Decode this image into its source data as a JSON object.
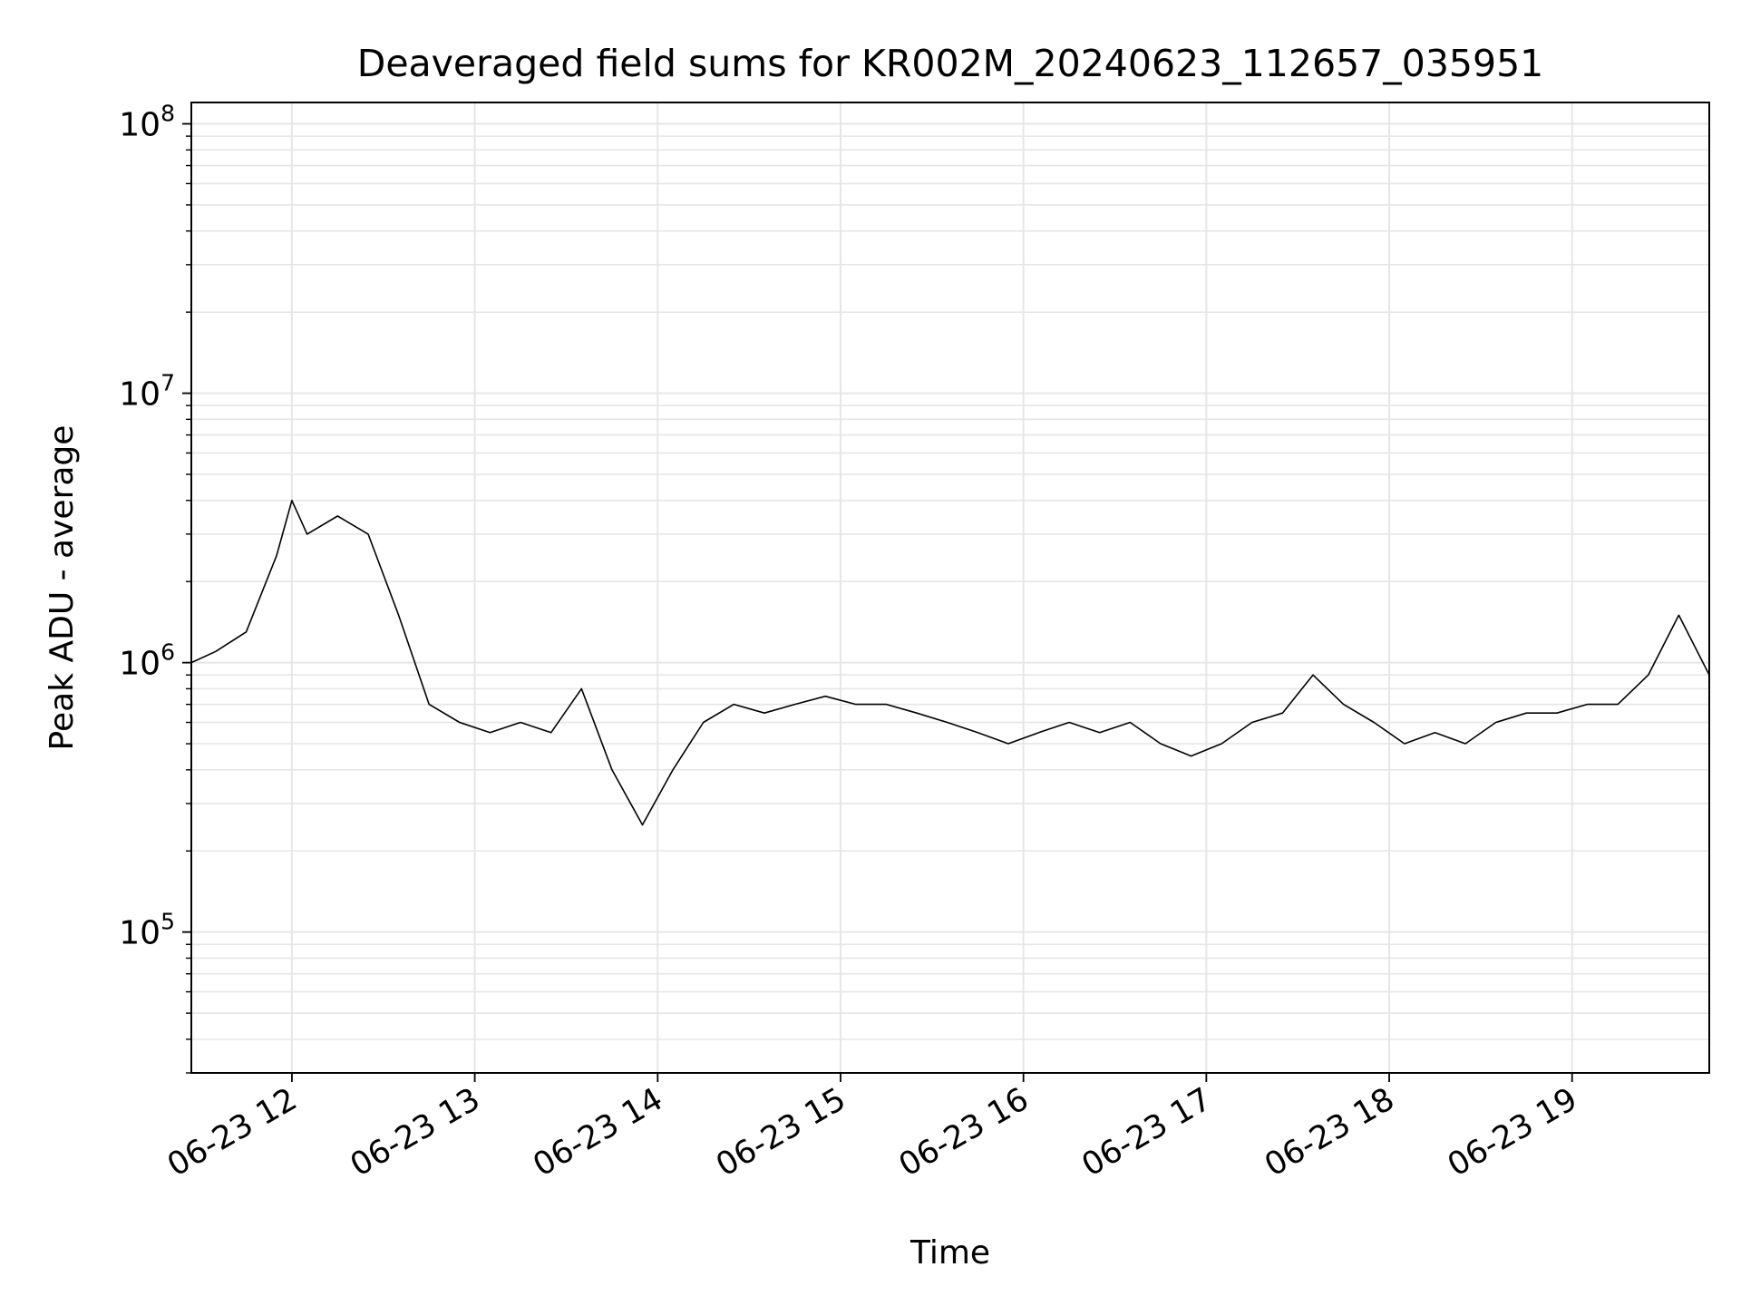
{
  "chart_data": {
    "type": "line",
    "title": "Deaveraged field sums for KR002M_20240623_112657_035951",
    "xlabel": "Time",
    "ylabel": "Peak ADU - average",
    "yscale": "log",
    "ylim": [
      30000,
      120000000
    ],
    "xlim": [
      "2024-06-23 11:27",
      "2024-06-23 19:45"
    ],
    "grid": true,
    "line_color": "#000000",
    "grid_color": "#e6e6e6",
    "x_ticks": [
      {
        "t": "2024-06-23 12:00",
        "label": "06-23 12"
      },
      {
        "t": "2024-06-23 13:00",
        "label": "06-23 13"
      },
      {
        "t": "2024-06-23 14:00",
        "label": "06-23 14"
      },
      {
        "t": "2024-06-23 15:00",
        "label": "06-23 15"
      },
      {
        "t": "2024-06-23 16:00",
        "label": "06-23 16"
      },
      {
        "t": "2024-06-23 17:00",
        "label": "06-23 17"
      },
      {
        "t": "2024-06-23 18:00",
        "label": "06-23 18"
      },
      {
        "t": "2024-06-23 19:00",
        "label": "06-23 19"
      }
    ],
    "y_ticks": [
      {
        "value": 100000,
        "mantissa": "10",
        "exponent": "5"
      },
      {
        "value": 1000000,
        "mantissa": "10",
        "exponent": "6"
      },
      {
        "value": 10000000,
        "mantissa": "10",
        "exponent": "7"
      },
      {
        "value": 100000000,
        "mantissa": "10",
        "exponent": "8"
      }
    ],
    "series": [
      {
        "x": [
          "2024-06-23 11:27",
          "2024-06-23 11:35",
          "2024-06-23 11:45",
          "2024-06-23 11:55",
          "2024-06-23 12:00",
          "2024-06-23 12:05",
          "2024-06-23 12:15",
          "2024-06-23 12:25",
          "2024-06-23 12:35",
          "2024-06-23 12:45",
          "2024-06-23 12:55",
          "2024-06-23 13:05",
          "2024-06-23 13:15",
          "2024-06-23 13:25",
          "2024-06-23 13:35",
          "2024-06-23 13:45",
          "2024-06-23 13:55",
          "2024-06-23 14:05",
          "2024-06-23 14:15",
          "2024-06-23 14:25",
          "2024-06-23 14:35",
          "2024-06-23 14:45",
          "2024-06-23 14:55",
          "2024-06-23 15:05",
          "2024-06-23 15:15",
          "2024-06-23 15:25",
          "2024-06-23 15:35",
          "2024-06-23 15:45",
          "2024-06-23 15:55",
          "2024-06-23 16:05",
          "2024-06-23 16:15",
          "2024-06-23 16:25",
          "2024-06-23 16:35",
          "2024-06-23 16:45",
          "2024-06-23 16:55",
          "2024-06-23 17:05",
          "2024-06-23 17:15",
          "2024-06-23 17:25",
          "2024-06-23 17:35",
          "2024-06-23 17:45",
          "2024-06-23 17:55",
          "2024-06-23 18:05",
          "2024-06-23 18:15",
          "2024-06-23 18:25",
          "2024-06-23 18:35",
          "2024-06-23 18:45",
          "2024-06-23 18:55",
          "2024-06-23 19:05",
          "2024-06-23 19:15",
          "2024-06-23 19:25",
          "2024-06-23 19:35",
          "2024-06-23 19:45"
        ],
        "y": [
          1000000,
          1100000,
          1300000,
          2500000,
          4000000,
          3000000,
          3500000,
          3000000,
          1500000,
          700000,
          600000,
          550000,
          600000,
          550000,
          800000,
          400000,
          250000,
          400000,
          600000,
          700000,
          650000,
          700000,
          750000,
          700000,
          700000,
          650000,
          600000,
          550000,
          500000,
          550000,
          600000,
          550000,
          600000,
          500000,
          450000,
          500000,
          600000,
          650000,
          900000,
          700000,
          600000,
          500000,
          550000,
          500000,
          600000,
          650000,
          650000,
          700000,
          700000,
          900000,
          1500000,
          900000
        ]
      }
    ]
  }
}
